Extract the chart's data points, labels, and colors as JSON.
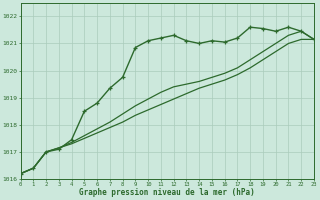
{
  "title": "Graphe pression niveau de la mer (hPa)",
  "bg_color": "#cce8dc",
  "grid_color": "#aaccbb",
  "line_color": "#2d6a2d",
  "x_min": 0,
  "x_max": 23,
  "y_min": 1016,
  "y_max": 1022.5,
  "x_ticks": [
    0,
    1,
    2,
    3,
    4,
    5,
    6,
    7,
    8,
    9,
    10,
    11,
    12,
    13,
    14,
    15,
    16,
    17,
    18,
    19,
    20,
    21,
    22,
    23
  ],
  "y_ticks": [
    1016,
    1017,
    1018,
    1019,
    1020,
    1021,
    1022
  ],
  "values_main": [
    1016.2,
    1016.4,
    1017.0,
    1017.1,
    1017.45,
    1018.5,
    1018.8,
    1019.35,
    1019.75,
    1020.85,
    1021.1,
    1021.2,
    1021.3,
    1021.1,
    1021.0,
    1021.1,
    1021.05,
    1021.2,
    1021.6,
    1021.55,
    1021.45,
    1021.6,
    1021.45,
    1021.15
  ],
  "values_line2": [
    1016.2,
    1016.4,
    1017.0,
    1017.15,
    1017.3,
    1017.5,
    1017.7,
    1017.9,
    1018.1,
    1018.35,
    1018.55,
    1018.75,
    1018.95,
    1019.15,
    1019.35,
    1019.5,
    1019.65,
    1019.85,
    1020.1,
    1020.4,
    1020.7,
    1021.0,
    1021.15,
    1021.15
  ],
  "values_line3": [
    1016.2,
    1016.4,
    1017.0,
    1017.15,
    1017.35,
    1017.6,
    1017.85,
    1018.1,
    1018.4,
    1018.7,
    1018.95,
    1019.2,
    1019.4,
    1019.5,
    1019.6,
    1019.75,
    1019.9,
    1020.1,
    1020.4,
    1020.7,
    1021.0,
    1021.3,
    1021.45,
    1021.15
  ]
}
